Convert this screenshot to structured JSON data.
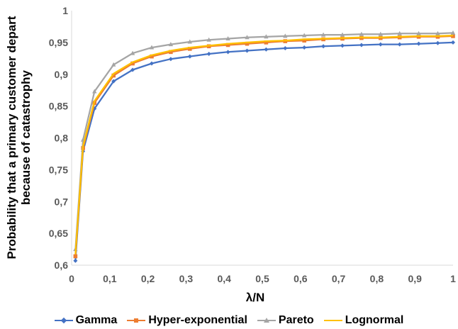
{
  "chart_data": {
    "type": "line",
    "xlabel": "λ/N",
    "ylabel_lines": [
      "Probability that a primary customer depart",
      "because of catastrophy"
    ],
    "xlim": [
      0,
      1
    ],
    "ylim": [
      0.6,
      1
    ],
    "x_ticks": [
      "0",
      "0,1",
      "0,2",
      "0,3",
      "0,4",
      "0,5",
      "0,6",
      "0,7",
      "0,8",
      "0,9",
      "1"
    ],
    "y_ticks": [
      "0,6",
      "0,65",
      "0,7",
      "0,75",
      "0,8",
      "0,85",
      "0,9",
      "0,95",
      "1"
    ],
    "grid": false,
    "legend_position": "bottom",
    "x": [
      0.01,
      0.03,
      0.06,
      0.11,
      0.16,
      0.21,
      0.26,
      0.31,
      0.36,
      0.41,
      0.46,
      0.51,
      0.56,
      0.61,
      0.66,
      0.71,
      0.76,
      0.81,
      0.86,
      0.91,
      0.96,
      1.0
    ],
    "series": [
      {
        "name": "Gamma",
        "color": "#4472C4",
        "marker": "diamond",
        "values": [
          0.607,
          0.779,
          0.846,
          0.889,
          0.907,
          0.917,
          0.924,
          0.928,
          0.932,
          0.935,
          0.937,
          0.939,
          0.941,
          0.942,
          0.944,
          0.945,
          0.946,
          0.947,
          0.947,
          0.948,
          0.949,
          0.95
        ]
      },
      {
        "name": "Hyper-exponential",
        "color": "#ED7D31",
        "marker": "square",
        "values": [
          0.614,
          0.784,
          0.855,
          0.898,
          0.917,
          0.928,
          0.935,
          0.94,
          0.944,
          0.946,
          0.948,
          0.95,
          0.952,
          0.953,
          0.955,
          0.956,
          0.957,
          0.957,
          0.958,
          0.959,
          0.959,
          0.96
        ]
      },
      {
        "name": "Pareto",
        "color": "#A5A5A5",
        "marker": "triangle",
        "values": [
          0.625,
          0.797,
          0.873,
          0.915,
          0.933,
          0.942,
          0.947,
          0.951,
          0.954,
          0.956,
          0.958,
          0.959,
          0.96,
          0.961,
          0.962,
          0.962,
          0.963,
          0.963,
          0.964,
          0.964,
          0.964,
          0.965
        ]
      },
      {
        "name": "Lognormal",
        "color": "#FFC000",
        "marker": "none",
        "values": [
          0.617,
          0.787,
          0.858,
          0.901,
          0.919,
          0.93,
          0.937,
          0.942,
          0.945,
          0.948,
          0.95,
          0.952,
          0.953,
          0.955,
          0.956,
          0.957,
          0.958,
          0.958,
          0.959,
          0.96,
          0.96,
          0.961
        ]
      }
    ]
  }
}
